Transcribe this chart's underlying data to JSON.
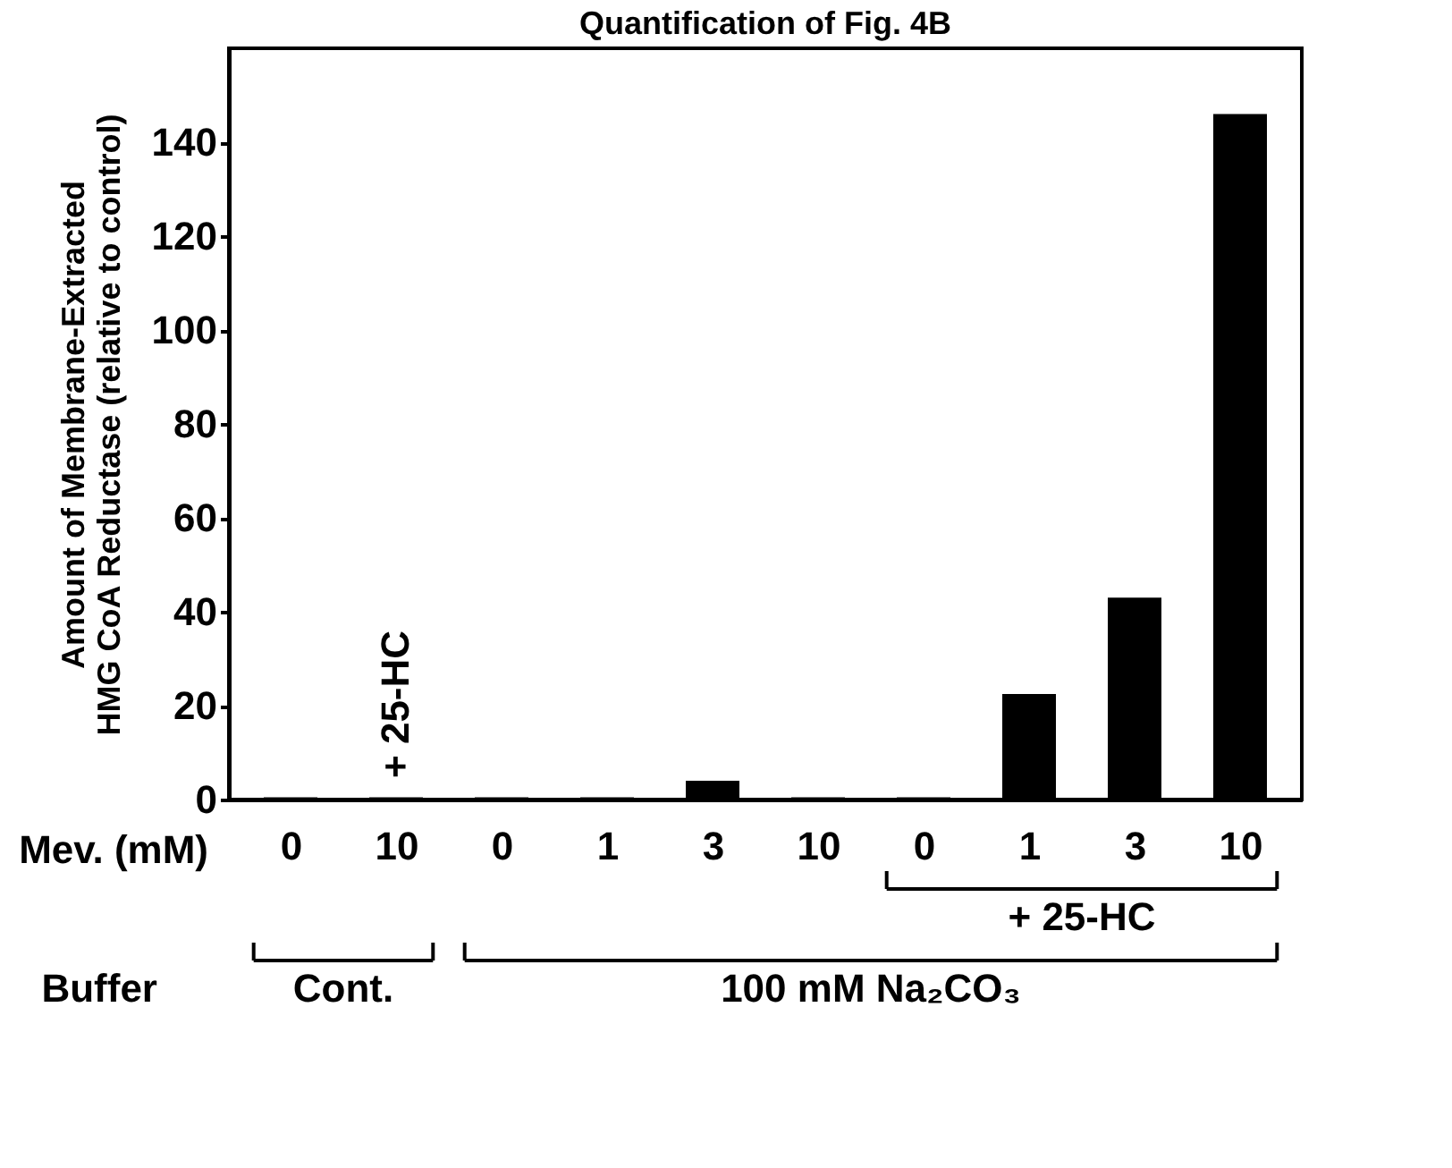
{
  "chart_data": {
    "type": "bar",
    "title": "Quantification of Fig. 4B",
    "xlabel": "Mev. (mM)",
    "ylabel": [
      "Amount of Membrane-Extracted",
      "HMG CoA Reductase (relative to control)"
    ],
    "categories": [
      "0",
      "10",
      "0",
      "1",
      "3",
      "10",
      "0",
      "1",
      "3",
      "10"
    ],
    "values": [
      0.5,
      0.5,
      0.5,
      0.5,
      4,
      0.5,
      0.5,
      22.5,
      43,
      146
    ],
    "color": "#000000",
    "ylim": [
      0,
      160
    ],
    "yticks": [
      0,
      20,
      40,
      60,
      80,
      100,
      120,
      140
    ],
    "grid": false,
    "annotations": [
      "+ 25-HC",
      "+ 25-HC",
      "Buffer",
      "Cont.",
      "100 mM Na₂CO₃"
    ]
  }
}
